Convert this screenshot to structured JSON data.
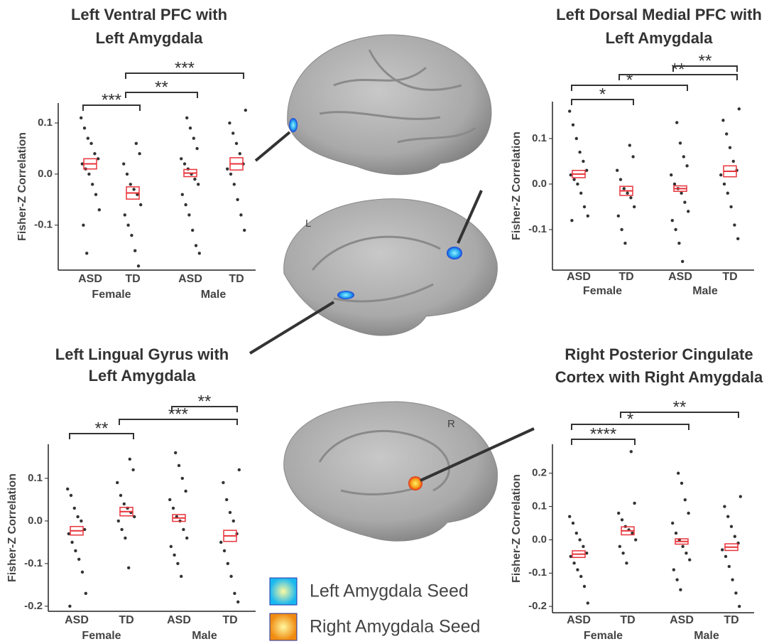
{
  "chart_data": [
    {
      "type": "strip",
      "title": [
        "Left Ventral PFC with",
        "Left Amygdala"
      ],
      "y_label": "Fisher-Z Correlation",
      "categories": [
        "ASD",
        "TD",
        "ASD",
        "TD"
      ],
      "group_labels": [
        "Female",
        "Male"
      ],
      "ylim": [
        -0.188,
        0.139
      ],
      "yticks": [
        0.1,
        {
          "value": 0,
          "label": "0.0"
        },
        -0.1
      ],
      "means": [
        0.02,
        -0.037,
        0.002,
        0.02
      ],
      "errors": [
        0.01,
        0.012,
        0.007,
        0.012
      ],
      "points": [
        [
          0.11,
          0.09,
          0.07,
          0.06,
          0.04,
          0.03,
          0.02,
          0.01,
          0.0,
          -0.02,
          -0.04,
          -0.07,
          -0.1,
          -0.155
        ],
        [
          0.06,
          0.04,
          0.02,
          0.0,
          -0.02,
          -0.03,
          -0.04,
          -0.06,
          -0.08,
          -0.1,
          -0.12,
          -0.15,
          -0.18
        ],
        [
          0.11,
          0.09,
          0.07,
          0.05,
          0.03,
          0.02,
          0.01,
          0.0,
          -0.01,
          -0.02,
          -0.04,
          -0.06,
          -0.08,
          -0.11,
          -0.14,
          -0.155
        ],
        [
          0.125,
          0.1,
          0.08,
          0.06,
          0.04,
          0.02,
          0.01,
          0.0,
          -0.02,
          -0.05,
          -0.08,
          -0.11
        ]
      ],
      "brackets": [
        {
          "from": 0,
          "to": 1,
          "label": "***"
        },
        {
          "from": 1,
          "to": 2,
          "label": "**"
        },
        {
          "from": 1,
          "to": 3,
          "label": "***"
        }
      ]
    },
    {
      "type": "strip",
      "title": [
        "Left Dorsal Medial PFC with",
        "Left Amygdala"
      ],
      "y_label": "Fisher-Z Correlation",
      "categories": [
        "ASD",
        "TD",
        "ASD",
        "TD"
      ],
      "group_labels": [
        "Female",
        "Male"
      ],
      "ylim": [
        -0.189,
        0.181
      ],
      "yticks": [
        0.1,
        {
          "value": 0,
          "label": "0.0"
        },
        -0.1
      ],
      "means": [
        0.022,
        -0.015,
        -0.01,
        0.028
      ],
      "errors": [
        0.008,
        0.01,
        0.006,
        0.012
      ],
      "points": [
        [
          0.16,
          0.13,
          0.1,
          0.07,
          0.05,
          0.03,
          0.02,
          0.01,
          0.0,
          -0.02,
          -0.05,
          -0.07,
          -0.08
        ],
        [
          0.085,
          0.06,
          0.03,
          0.01,
          -0.01,
          -0.02,
          -0.03,
          -0.05,
          -0.07,
          -0.1,
          -0.13
        ],
        [
          0.135,
          0.09,
          0.06,
          0.04,
          0.02,
          0.0,
          -0.01,
          -0.02,
          -0.04,
          -0.06,
          -0.08,
          -0.1,
          -0.13,
          -0.17
        ],
        [
          0.165,
          0.14,
          0.11,
          0.08,
          0.05,
          0.03,
          0.02,
          0.0,
          -0.02,
          -0.05,
          -0.09,
          -0.12
        ]
      ],
      "brackets": [
        {
          "from": 0,
          "to": 2,
          "label": "*"
        },
        {
          "from": 0,
          "to": 1,
          "label": "*"
        },
        {
          "from": 1,
          "to": 3,
          "label": "**"
        },
        {
          "from": 2,
          "to": 3,
          "label": "**"
        }
      ]
    },
    {
      "type": "strip",
      "title": [
        "Left Lingual Gyrus with",
        "Left Amygdala"
      ],
      "y_label": "Fisher-Z Correlation",
      "categories": [
        "ASD",
        "TD",
        "ASD",
        "TD"
      ],
      "group_labels": [
        "Female",
        "Male"
      ],
      "ylim": [
        -0.212,
        0.18
      ],
      "yticks": [
        0.1,
        {
          "value": 0,
          "label": "0.0"
        },
        -0.1,
        -0.2
      ],
      "means": [
        -0.023,
        0.022,
        0.007,
        -0.035
      ],
      "errors": [
        0.01,
        0.01,
        0.008,
        0.013
      ],
      "points": [
        [
          0.075,
          0.06,
          0.03,
          0.01,
          0.0,
          -0.02,
          -0.03,
          -0.05,
          -0.07,
          -0.09,
          -0.12,
          -0.17,
          -0.2
        ],
        [
          0.145,
          0.12,
          0.09,
          0.06,
          0.04,
          0.03,
          0.02,
          0.01,
          0.0,
          -0.02,
          -0.04,
          -0.11
        ],
        [
          0.16,
          0.13,
          0.1,
          0.07,
          0.05,
          0.03,
          0.01,
          0.0,
          -0.02,
          -0.04,
          -0.06,
          -0.08,
          -0.1,
          -0.13
        ],
        [
          0.12,
          0.09,
          0.05,
          0.02,
          0.0,
          -0.03,
          -0.05,
          -0.07,
          -0.1,
          -0.13,
          -0.17,
          -0.19
        ]
      ],
      "brackets": [
        {
          "from": 0,
          "to": 1,
          "label": "**"
        },
        {
          "from": 1,
          "to": 3,
          "label": "***"
        },
        {
          "from": 2,
          "to": 3,
          "label": "**"
        }
      ]
    },
    {
      "type": "strip",
      "title": [
        "Right Posterior Cingulate",
        "Cortex with Right Amygdala"
      ],
      "y_label": "Fisher-Z Correlation",
      "categories": [
        "ASD",
        "TD",
        "ASD",
        "TD"
      ],
      "group_labels": [
        "Female",
        "Male"
      ],
      "ylim": [
        -0.219,
        0.287
      ],
      "yticks": [
        0.2,
        0.1,
        {
          "value": 0,
          "label": "0.0"
        },
        -0.1,
        -0.2
      ],
      "means": [
        -0.043,
        0.027,
        -0.005,
        -0.022
      ],
      "errors": [
        0.01,
        0.012,
        0.008,
        0.01
      ],
      "points": [
        [
          0.07,
          0.05,
          0.02,
          0.0,
          -0.02,
          -0.04,
          -0.05,
          -0.07,
          -0.09,
          -0.11,
          -0.14,
          -0.19
        ],
        [
          0.265,
          0.11,
          0.08,
          0.06,
          0.04,
          0.03,
          0.02,
          0.0,
          -0.02,
          -0.04,
          -0.07
        ],
        [
          0.2,
          0.17,
          0.12,
          0.08,
          0.05,
          0.02,
          0.0,
          -0.02,
          -0.04,
          -0.06,
          -0.09,
          -0.12,
          -0.15
        ],
        [
          0.13,
          0.1,
          0.07,
          0.04,
          0.01,
          -0.01,
          -0.03,
          -0.05,
          -0.08,
          -0.12,
          -0.16,
          -0.2
        ]
      ],
      "brackets": [
        {
          "from": 0,
          "to": 2,
          "label": "*"
        },
        {
          "from": 0,
          "to": 1,
          "label": "****"
        },
        {
          "from": 1,
          "to": 3,
          "label": "**"
        }
      ]
    }
  ],
  "brain_labels": [
    "L",
    "R"
  ],
  "legend": [
    {
      "name": "Left Amygdala Seed",
      "color": "#1ab8f0"
    },
    {
      "name": "Right Amygdala Seed",
      "color": "#f08a10"
    }
  ]
}
